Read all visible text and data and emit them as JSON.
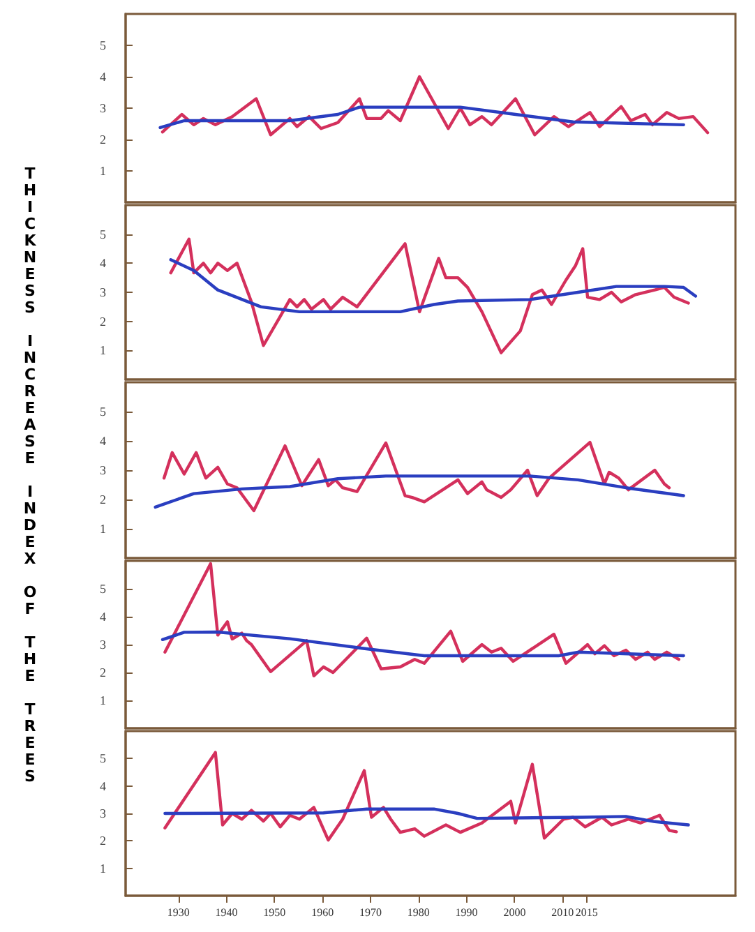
{
  "chart_data": [
    {
      "type": "line",
      "ylabel": "THICKNESS INCREASE INDEX OF THE TREES",
      "xlim": [
        1919,
        2046
      ],
      "ylim": [
        0,
        6
      ],
      "yticks": [
        1,
        2,
        3,
        4,
        5
      ],
      "tick_labels": "y",
      "marker": "none",
      "line_style": "solid",
      "series": [
        {
          "color": "#d4305c",
          "x": [
            1926.7,
            1930.7,
            1933.2,
            1935.2,
            1937.7,
            1941.2,
            1946.2,
            1949.2,
            1953.2,
            1954.7,
            1957.2,
            1959.7,
            1963.2,
            1967.7,
            1969.2,
            1972.2,
            1973.7,
            1976.2,
            1980.2,
            1986.2,
            1988.7,
            1990.7,
            1993.2,
            1995.2,
            2000.2,
            2004.2,
            2008.2,
            2011.2,
            2015.7,
            2017.7,
            2022.2,
            2024.2,
            2027.2,
            2028.7,
            2031.7,
            2034.2,
            2037.2,
            2040.2
          ],
          "values": [
            2.24,
            2.8,
            2.47,
            2.67,
            2.47,
            2.73,
            3.3,
            2.15,
            2.67,
            2.41,
            2.73,
            2.35,
            2.54,
            3.3,
            2.67,
            2.67,
            2.92,
            2.6,
            4.0,
            2.35,
            3.0,
            2.47,
            2.73,
            2.47,
            3.3,
            2.15,
            2.73,
            2.41,
            2.86,
            2.41,
            3.05,
            2.6,
            2.8,
            2.47,
            2.86,
            2.67,
            2.73,
            2.22
          ]
        },
        {
          "color": "#2a3ec0",
          "x": [
            1926.2,
            1931.2,
            1953.2,
            1963.2,
            1967.7,
            1988.7,
            2000.2,
            2012.2,
            2035.2
          ],
          "values": [
            2.38,
            2.6,
            2.6,
            2.8,
            3.03,
            3.03,
            2.8,
            2.56,
            2.47
          ]
        }
      ]
    },
    {
      "type": "line",
      "xlim": [
        1919,
        2046
      ],
      "ylim": [
        0,
        6
      ],
      "yticks": [
        1,
        2,
        3,
        4,
        5
      ],
      "tick_labels": "y",
      "marker": "none",
      "line_style": "solid",
      "series": [
        {
          "color": "#d4305c",
          "x": [
            1928.4,
            1932.2,
            1933.2,
            1935.2,
            1936.7,
            1938.2,
            1940.2,
            1942.2,
            1945.2,
            1947.7,
            1951.2,
            1953.2,
            1954.7,
            1956.2,
            1957.7,
            1960.2,
            1961.7,
            1964.2,
            1967.2,
            1977.2,
            1980.2,
            1984.2,
            1985.7,
            1988.2,
            1990.2,
            1993.2,
            1997.2,
            2001.2,
            2003.7,
            2005.7,
            2007.7,
            2010.7,
            2012.7,
            2014.2,
            2015.2,
            2017.7,
            2020.2,
            2022.2,
            2025.2,
            2029.2,
            2031.2,
            2033.2,
            2036.2
          ],
          "values": [
            3.67,
            4.83,
            3.67,
            4.0,
            3.67,
            4.0,
            3.75,
            4.0,
            2.67,
            1.17,
            2.17,
            2.75,
            2.5,
            2.75,
            2.42,
            2.75,
            2.42,
            2.83,
            2.5,
            4.67,
            2.33,
            4.17,
            3.5,
            3.5,
            3.17,
            2.33,
            0.92,
            1.67,
            2.92,
            3.08,
            2.58,
            3.42,
            3.92,
            4.5,
            2.83,
            2.75,
            3.0,
            2.67,
            2.92,
            3.08,
            3.17,
            2.83,
            2.63
          ]
        },
        {
          "color": "#2a3ec0",
          "x": [
            1928.4,
            1933.2,
            1938.2,
            1947.2,
            1955.2,
            1976.2,
            1983.2,
            1988.2,
            2003.2,
            2013.2,
            2021.2,
            2031.2,
            2035.2,
            2037.7
          ],
          "values": [
            4.12,
            3.75,
            3.08,
            2.5,
            2.33,
            2.33,
            2.58,
            2.7,
            2.75,
            3.0,
            3.2,
            3.2,
            3.17,
            2.87
          ]
        }
      ]
    },
    {
      "type": "line",
      "xlim": [
        1919,
        2046
      ],
      "ylim": [
        0,
        6
      ],
      "yticks": [
        1,
        2,
        3,
        4,
        5
      ],
      "tick_labels": "y",
      "marker": "none",
      "line_style": "solid",
      "series": [
        {
          "color": "#d4305c",
          "x": [
            1927,
            1928.7,
            1931.2,
            1933.7,
            1935.7,
            1938.2,
            1940.2,
            1942.2,
            1945.7,
            1952.2,
            1955.7,
            1959.2,
            1961.2,
            1962.7,
            1964.2,
            1967.2,
            1973.2,
            1977.2,
            1978.7,
            1981.2,
            1988.2,
            1990.2,
            1993.2,
            1994.2,
            1997.2,
            1999.2,
            2002.7,
            2004.7,
            2007.2,
            2015.7,
            2018.7,
            2019.7,
            2021.7,
            2023.7,
            2029.2,
            2031.2,
            2032.2
          ],
          "values": [
            2.73,
            3.6,
            2.87,
            3.6,
            2.73,
            3.1,
            2.53,
            2.4,
            1.62,
            3.83,
            2.47,
            3.36,
            2.47,
            2.67,
            2.4,
            2.27,
            3.93,
            2.13,
            2.07,
            1.92,
            2.67,
            2.2,
            2.6,
            2.33,
            2.07,
            2.33,
            3.0,
            2.13,
            2.73,
            3.95,
            2.53,
            2.93,
            2.73,
            2.33,
            3.0,
            2.53,
            2.4
          ]
        },
        {
          "color": "#2a3ec0",
          "x": [
            1925.2,
            1933.2,
            1943.2,
            1953.2,
            1963.2,
            1973.2,
            2003.2,
            2013.2,
            2023.2,
            2035.2
          ],
          "values": [
            1.74,
            2.2,
            2.36,
            2.44,
            2.71,
            2.8,
            2.8,
            2.67,
            2.4,
            2.13
          ]
        }
      ]
    },
    {
      "type": "line",
      "xlim": [
        1919,
        2046
      ],
      "ylim": [
        0,
        6
      ],
      "yticks": [
        1,
        2,
        3,
        4,
        5
      ],
      "tick_labels": "y",
      "marker": "none",
      "line_style": "solid",
      "series": [
        {
          "color": "#d4305c",
          "x": [
            1927.2,
            1936.7,
            1938.2,
            1940.2,
            1941.2,
            1943.2,
            1944.2,
            1945.2,
            1949.2,
            1956.7,
            1958.2,
            1960.2,
            1962.2,
            1969.2,
            1972.2,
            1976.2,
            1979.2,
            1981.2,
            1986.7,
            1989.2,
            1993.2,
            1995.2,
            1997.2,
            1999.7,
            2008.2,
            2010.7,
            2015.2,
            2016.7,
            2018.7,
            2020.7,
            2023.2,
            2025.2,
            2027.7,
            2029.2,
            2031.7,
            2034.2
          ],
          "values": [
            2.73,
            5.9,
            3.34,
            3.82,
            3.2,
            3.41,
            3.14,
            3.0,
            2.03,
            3.14,
            1.88,
            2.2,
            2.0,
            3.23,
            2.13,
            2.2,
            2.47,
            2.33,
            3.48,
            2.4,
            3.0,
            2.73,
            2.87,
            2.4,
            3.37,
            2.33,
            3.0,
            2.67,
            2.96,
            2.6,
            2.8,
            2.47,
            2.73,
            2.47,
            2.73,
            2.47
          ]
        },
        {
          "color": "#2a3ec0",
          "x": [
            1926.7,
            1931.2,
            1938.2,
            1953.2,
            1968.2,
            1981.2,
            2009.2,
            2013.2,
            2035.2
          ],
          "values": [
            3.18,
            3.44,
            3.45,
            3.21,
            2.87,
            2.6,
            2.6,
            2.73,
            2.6
          ]
        }
      ]
    },
    {
      "type": "line",
      "xlim": [
        1919,
        2046
      ],
      "ylim": [
        0,
        6
      ],
      "yticks": [
        1,
        2,
        3,
        4,
        5
      ],
      "xticks": [
        1930,
        1940,
        1950,
        1960,
        1970,
        1980,
        1990,
        2000,
        2010,
        2015
      ],
      "marker": "none",
      "line_style": "solid",
      "series": [
        {
          "color": "#d4305c",
          "x": [
            1927.2,
            1937.7,
            1939.2,
            1941.2,
            1943.2,
            1945.2,
            1947.7,
            1949.2,
            1951.2,
            1953.2,
            1955.2,
            1958.2,
            1961.2,
            1964.2,
            1968.7,
            1970.2,
            1972.7,
            1974.2,
            1976.2,
            1979.2,
            1981.2,
            1985.7,
            1988.7,
            1993.2,
            1999.2,
            2000.2,
            2003.7,
            2006.2,
            2010.2,
            2012.2,
            2014.7,
            2018.2,
            2020.2,
            2023.7,
            2026.2,
            2030.2,
            2032.2,
            2033.7
          ],
          "values": [
            2.47,
            5.22,
            2.58,
            3.0,
            2.79,
            3.11,
            2.72,
            3.0,
            2.51,
            2.93,
            2.79,
            3.22,
            2.03,
            2.79,
            4.56,
            2.86,
            3.22,
            2.79,
            2.31,
            2.44,
            2.17,
            2.58,
            2.31,
            2.65,
            3.44,
            2.65,
            4.79,
            2.1,
            2.79,
            2.86,
            2.51,
            2.86,
            2.58,
            2.79,
            2.65,
            2.93,
            2.38,
            2.33
          ]
        },
        {
          "color": "#2a3ec0",
          "x": [
            1927.2,
            1960.2,
            1969.2,
            1983.2,
            1988.2,
            1992.2,
            2014.2,
            2023.2,
            2029.2,
            2036.2
          ],
          "values": [
            3.0,
            3.02,
            3.16,
            3.16,
            3.0,
            2.82,
            2.86,
            2.89,
            2.7,
            2.58
          ]
        }
      ]
    }
  ]
}
